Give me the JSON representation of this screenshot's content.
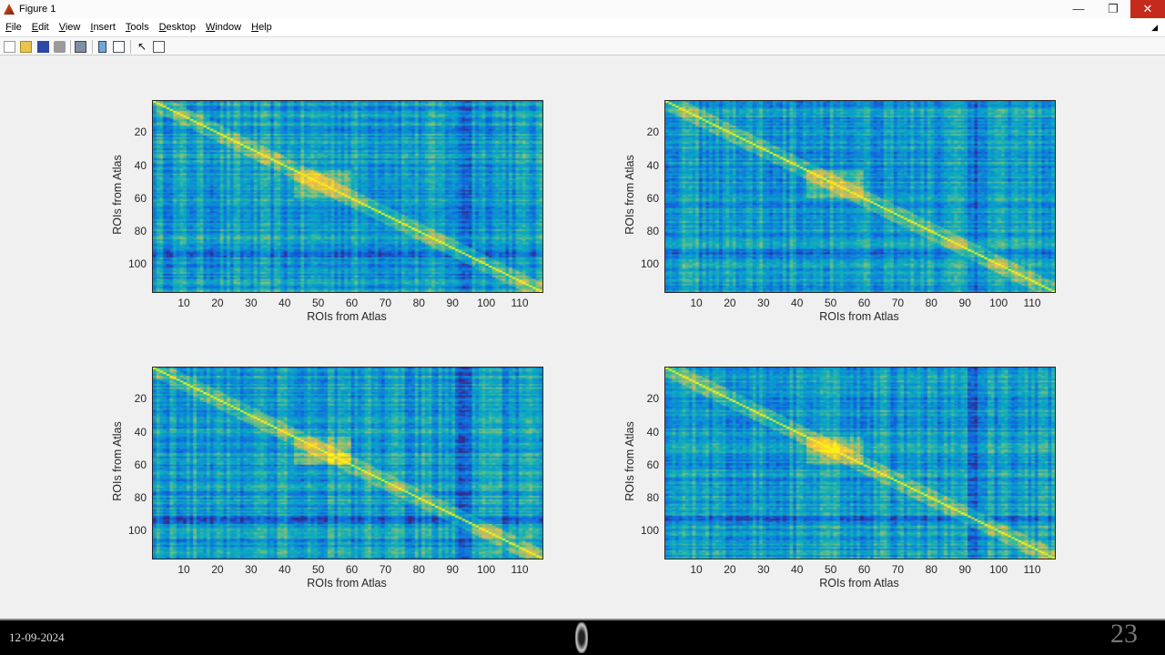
{
  "window": {
    "title": "Figure 1",
    "minimize": "—",
    "restore": "❐",
    "close": "✕"
  },
  "menu": [
    "File",
    "Edit",
    "View",
    "Insert",
    "Tools",
    "Desktop",
    "Window",
    "Help"
  ],
  "toolbar": [
    "new-figure-icon",
    "open-file-icon",
    "save-icon",
    "print-icon",
    "link-plot-icon",
    "insert-colorbar-icon",
    "insert-legend-icon",
    "edit-plot-arrow-icon",
    "property-inspector-icon"
  ],
  "chart_data": [
    {
      "type": "heatmap",
      "colormap": "parula",
      "xlabel": "ROIs from Atlas",
      "ylabel": "ROIs from Atlas",
      "matrix_size": [
        116,
        116
      ],
      "xlim": [
        1,
        116
      ],
      "ylim": [
        1,
        116
      ],
      "xticks": [
        10,
        20,
        30,
        40,
        50,
        60,
        70,
        80,
        90,
        100,
        110
      ],
      "yticks": [
        20,
        40,
        60,
        80,
        100
      ],
      "diagonal": "high"
    },
    {
      "type": "heatmap",
      "colormap": "parula",
      "xlabel": "ROIs from Atlas",
      "ylabel": "ROIs from Atlas",
      "matrix_size": [
        116,
        116
      ],
      "xlim": [
        1,
        116
      ],
      "ylim": [
        1,
        116
      ],
      "xticks": [
        10,
        20,
        30,
        40,
        50,
        60,
        70,
        80,
        90,
        100,
        110
      ],
      "yticks": [
        20,
        40,
        60,
        80,
        100
      ],
      "diagonal": "high"
    },
    {
      "type": "heatmap",
      "colormap": "parula",
      "xlabel": "ROIs from Atlas",
      "ylabel": "ROIs from Atlas",
      "matrix_size": [
        116,
        116
      ],
      "xlim": [
        1,
        116
      ],
      "ylim": [
        1,
        116
      ],
      "xticks": [
        10,
        20,
        30,
        40,
        50,
        60,
        70,
        80,
        90,
        100,
        110
      ],
      "yticks": [
        20,
        40,
        60,
        80,
        100
      ],
      "diagonal": "high"
    },
    {
      "type": "heatmap",
      "colormap": "parula",
      "xlabel": "ROIs from Atlas",
      "ylabel": "ROIs from Atlas",
      "matrix_size": [
        116,
        116
      ],
      "xlim": [
        1,
        116
      ],
      "ylim": [
        1,
        116
      ],
      "xticks": [
        10,
        20,
        30,
        40,
        50,
        60,
        70,
        80,
        90,
        100,
        110
      ],
      "yticks": [
        20,
        40,
        60,
        80,
        100
      ],
      "diagonal": "high"
    }
  ],
  "footer": {
    "date": "12-09-2024",
    "slide_number": "23"
  }
}
